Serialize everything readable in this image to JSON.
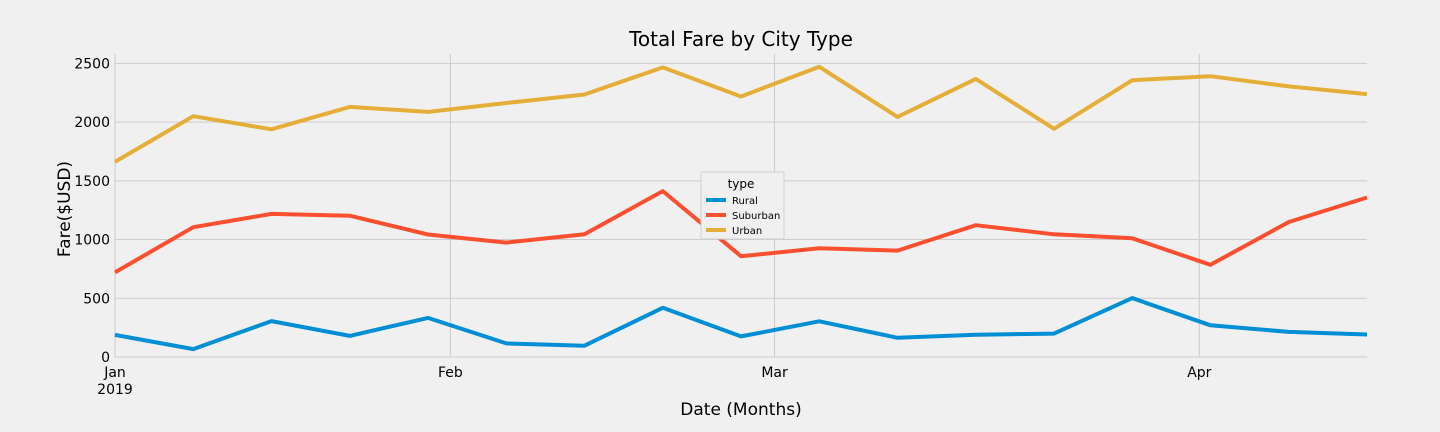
{
  "chart_data": {
    "type": "line",
    "title": "Total Fare by City Type",
    "xlabel": "Date (Months)",
    "ylabel": "Fare($USD)",
    "ylim": [
      0,
      2580
    ],
    "xlim": [
      "2019-01-06",
      "2019-04-28"
    ],
    "yticks": [
      0,
      500,
      1000,
      1500,
      2000,
      2500
    ],
    "xticks": [
      {
        "date": "2019-01-06",
        "label": "Jan",
        "sublabel": "2019"
      },
      {
        "date": "2019-02-05",
        "label": "Feb",
        "sublabel": ""
      },
      {
        "date": "2019-03-06",
        "label": "Mar",
        "sublabel": ""
      },
      {
        "date": "2019-04-13",
        "label": "Apr",
        "sublabel": ""
      }
    ],
    "grid": true,
    "legend": {
      "title": "type",
      "position": "center"
    },
    "x": [
      "2019-01-06",
      "2019-01-13",
      "2019-01-20",
      "2019-01-27",
      "2019-02-03",
      "2019-02-10",
      "2019-02-17",
      "2019-02-24",
      "2019-03-03",
      "2019-03-10",
      "2019-03-17",
      "2019-03-24",
      "2019-03-31",
      "2019-04-07",
      "2019-04-14",
      "2019-04-21",
      "2019-04-28"
    ],
    "series": [
      {
        "name": "Rural",
        "color": "#008fd5",
        "values": [
          187.92,
          67.65,
          306.0,
          179.69,
          333.08,
          115.8,
          95.82,
          419.06,
          175.14,
          303.94,
          163.39,
          189.76,
          199.42,
          501.24,
          269.79,
          214.14,
          191.85
        ]
      },
      {
        "name": "Suburban",
        "color": "#fc4f30",
        "values": [
          721.6,
          1105.13,
          1218.2,
          1203.28,
          1042.79,
          974.34,
          1045.5,
          1412.74,
          858.46,
          925.27,
          906.2,
          1122.2,
          1045.06,
          1010.73,
          784.82,
          1149.27,
          1357.75
        ]
      },
      {
        "name": "Urban",
        "color": "#e5ae38",
        "values": [
          1661.68,
          2050.43,
          1939.02,
          2129.51,
          2086.94,
          2162.64,
          2235.07,
          2466.29,
          2218.2,
          2470.93,
          2044.42,
          2368.37,
          1942.77,
          2356.7,
          2390.72,
          2303.8,
          2238.29
        ]
      }
    ]
  }
}
